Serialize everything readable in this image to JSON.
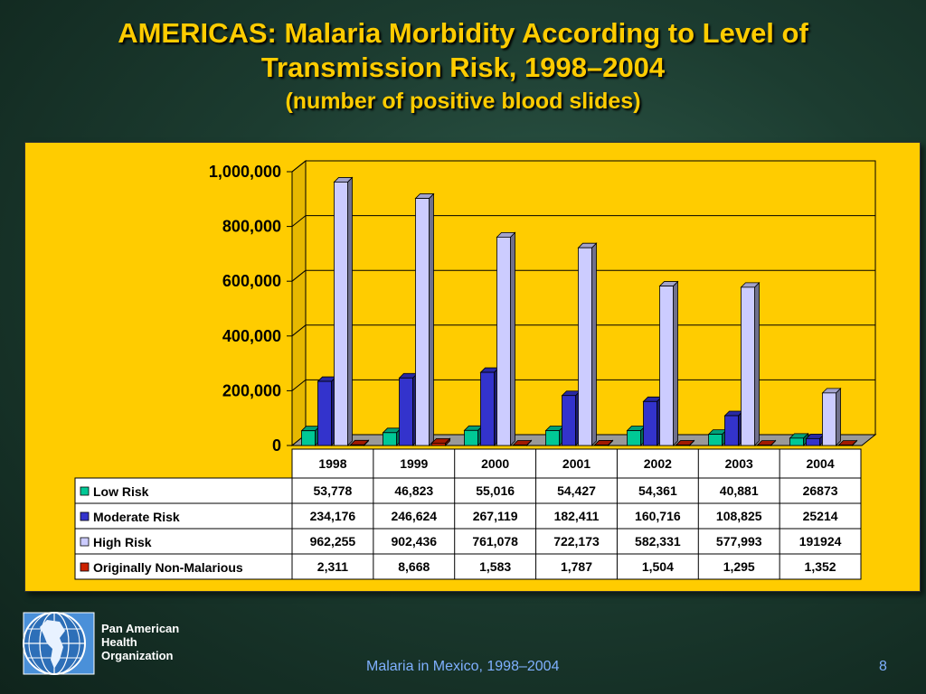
{
  "slide": {
    "title_line1": "AMERICAS: Malaria Morbidity According to Level of",
    "title_line2": "Transmission Risk, 1998–2004",
    "subtitle": "(number of  positive blood slides)",
    "footer": "Malaria in Mexico, 1998–2004",
    "page_number": "8",
    "org_name_line1": "Pan American",
    "org_name_line2": "Health",
    "org_name_line3": "Organization"
  },
  "chart_data": {
    "type": "bar",
    "categories": [
      "1998",
      "1999",
      "2000",
      "2001",
      "2002",
      "2003",
      "2004"
    ],
    "series": [
      {
        "name": "Low Risk",
        "color": "#00c896",
        "values": [
          53778,
          46823,
          55016,
          54427,
          54361,
          40881,
          26873
        ],
        "labels": [
          "53,778",
          "46,823",
          "55,016",
          "54,427",
          "54,361",
          "40,881",
          "26873"
        ]
      },
      {
        "name": "Moderate Risk",
        "color": "#3333cc",
        "values": [
          234176,
          246624,
          267119,
          182411,
          160716,
          108825,
          25214
        ],
        "labels": [
          "234,176",
          "246,624",
          "267,119",
          "182,411",
          "160,716",
          "108,825",
          "25214"
        ]
      },
      {
        "name": "High Risk",
        "color": "#ccccff",
        "values": [
          962255,
          902436,
          761078,
          722173,
          582331,
          577993,
          191924
        ],
        "labels": [
          "962,255",
          "902,436",
          "761,078",
          "722,173",
          "582,331",
          "577,993",
          "191924"
        ]
      },
      {
        "name": "Originally Non-Malarious",
        "color": "#cc2200",
        "values": [
          2311,
          8668,
          1583,
          1787,
          1504,
          1295,
          1352
        ],
        "labels": [
          "2,311",
          "8,668",
          "1,583",
          "1,787",
          "1,504",
          "1,295",
          "1,352"
        ]
      }
    ],
    "ylim": [
      0,
      1000000
    ],
    "yticks": [
      0,
      200000,
      400000,
      600000,
      800000,
      1000000
    ],
    "ytick_labels": [
      "0",
      "200,000",
      "400,000",
      "600,000",
      "800,000",
      "1,000,000"
    ],
    "grid": true,
    "legend": "data-table"
  }
}
